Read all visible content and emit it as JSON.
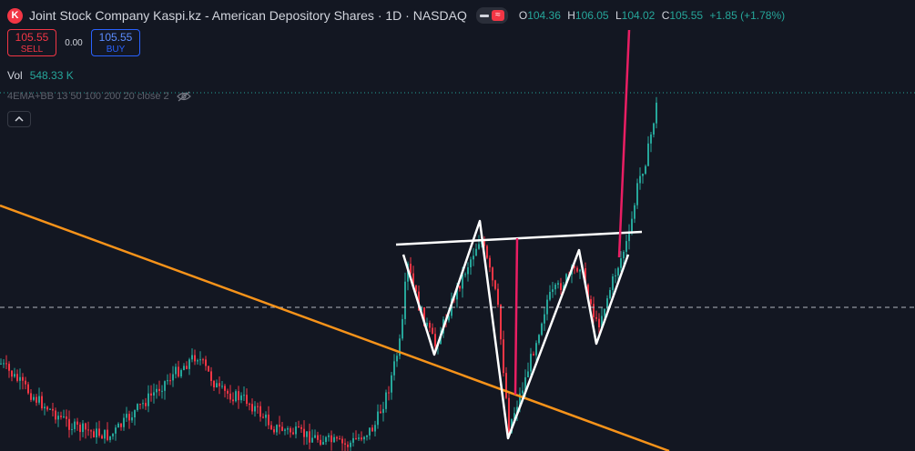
{
  "header": {
    "logo_letter": "K",
    "title": "Joint Stock Company Kaspi.kz - American Depository Shares · 1D · NASDAQ",
    "ohlc": {
      "o_label": "O",
      "o_value": "104.36",
      "h_label": "H",
      "h_value": "106.05",
      "l_label": "L",
      "l_value": "104.02",
      "c_label": "C",
      "c_value": "105.55",
      "change": "+1.85 (+1.78%)"
    }
  },
  "trade": {
    "sell_price": "105.55",
    "sell_label": "SELL",
    "spread": "0.00",
    "buy_price": "105.55",
    "buy_label": "BUY"
  },
  "volume": {
    "label": "Vol",
    "value": "548.33 K"
  },
  "indicator": {
    "label": "4EMA+BB 13 50 100 200 20 close 2",
    "icon": "eye-crossed-icon"
  },
  "colors": {
    "background": "#131722",
    "up": "#26a69a",
    "down": "#f23645",
    "trendline": "#f7931a",
    "pattern": "#ffffff",
    "marker": "#e91e63"
  },
  "chart_data": {
    "type": "candlestick",
    "price_range_visible": [
      60,
      110
    ],
    "reference_lines": [
      {
        "kind": "dotted",
        "value": 105.55
      },
      {
        "kind": "dashed",
        "value": 81.5
      }
    ]
  }
}
